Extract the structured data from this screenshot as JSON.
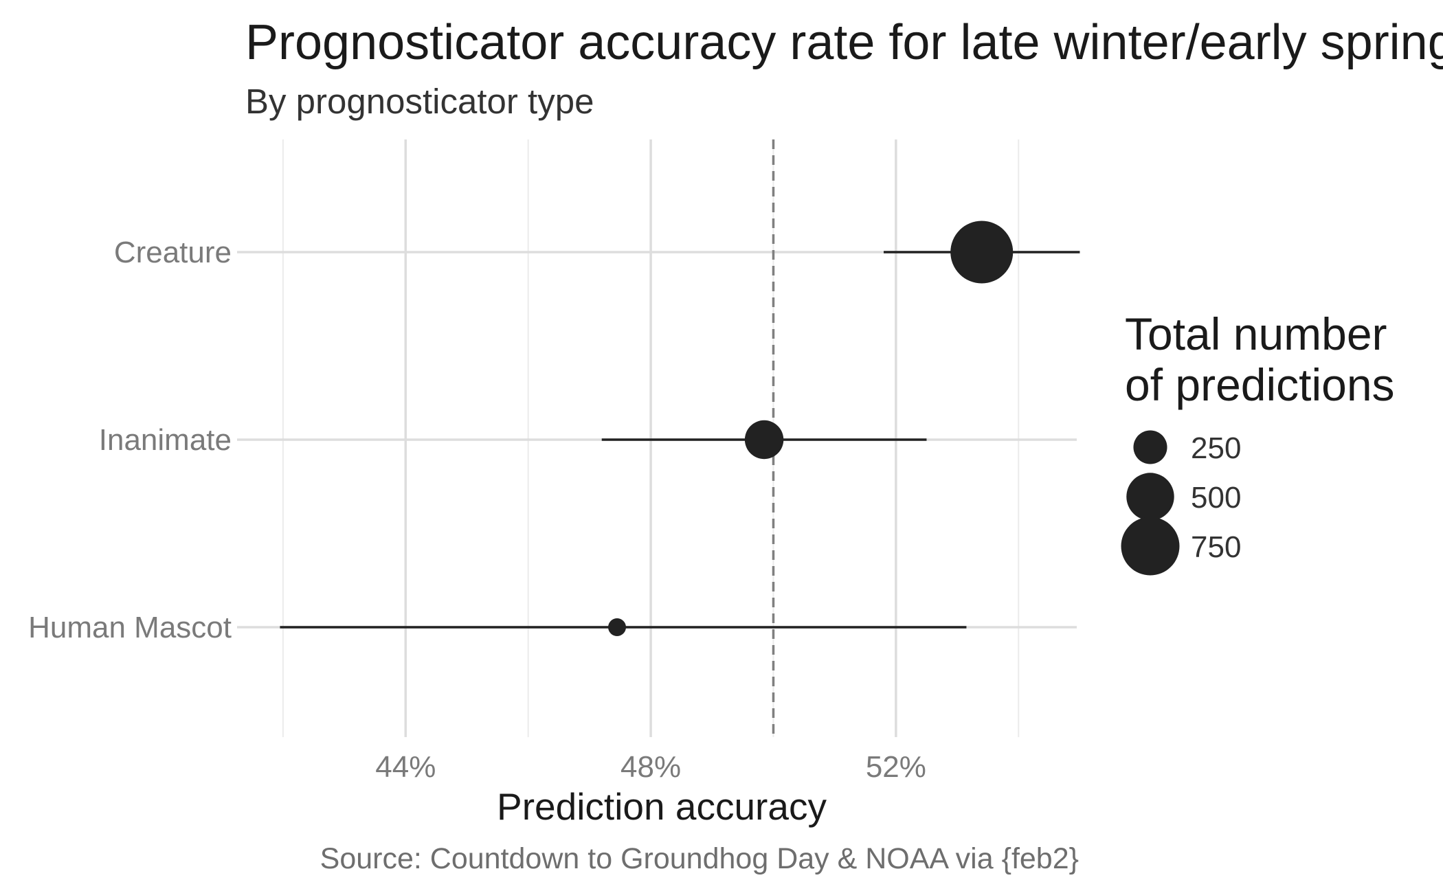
{
  "chart_data": {
    "type": "scatter",
    "title": "Prognosticator accuracy rate for late winter/early spring predictions",
    "subtitle": "By prognosticator type",
    "xlabel": "Prediction accuracy",
    "ylabel": "",
    "caption": "Source: Countdown to Groundhog Day & NOAA via {feb2}",
    "xlim": [
      0.4125,
      0.5495
    ],
    "x_ticks": [
      {
        "value": 0.44,
        "label": "44%"
      },
      {
        "value": 0.48,
        "label": "48%"
      },
      {
        "value": 0.52,
        "label": "52%"
      }
    ],
    "x_minor_gridlines": [
      0.42,
      0.46,
      0.5,
      0.54
    ],
    "reference_line": {
      "value": 0.5,
      "style": "dashed"
    },
    "grid": true,
    "categories": [
      "Creature",
      "Inanimate",
      "Human Mascot"
    ],
    "points": [
      {
        "category": "Creature",
        "estimate": 0.534,
        "ci_low": 0.518,
        "ci_high": 0.55,
        "n": 860
      },
      {
        "category": "Inanimate",
        "estimate": 0.4985,
        "ci_low": 0.472,
        "ci_high": 0.525,
        "n": 330
      },
      {
        "category": "Human Mascot",
        "estimate": 0.4745,
        "ci_low": 0.4195,
        "ci_high": 0.5315,
        "n": 70
      }
    ],
    "legend": {
      "title_lines": [
        "Total number",
        "of predictions"
      ],
      "placement": "right",
      "entries": [
        {
          "n": 250,
          "label": "250"
        },
        {
          "n": 500,
          "label": "500"
        },
        {
          "n": 750,
          "label": "750"
        }
      ]
    },
    "colors": {
      "point": "#222222",
      "errorbar": "#222222",
      "grid_major": "#dddddd",
      "grid_minor": "#ebebeb",
      "reference_line": "#808080"
    }
  }
}
